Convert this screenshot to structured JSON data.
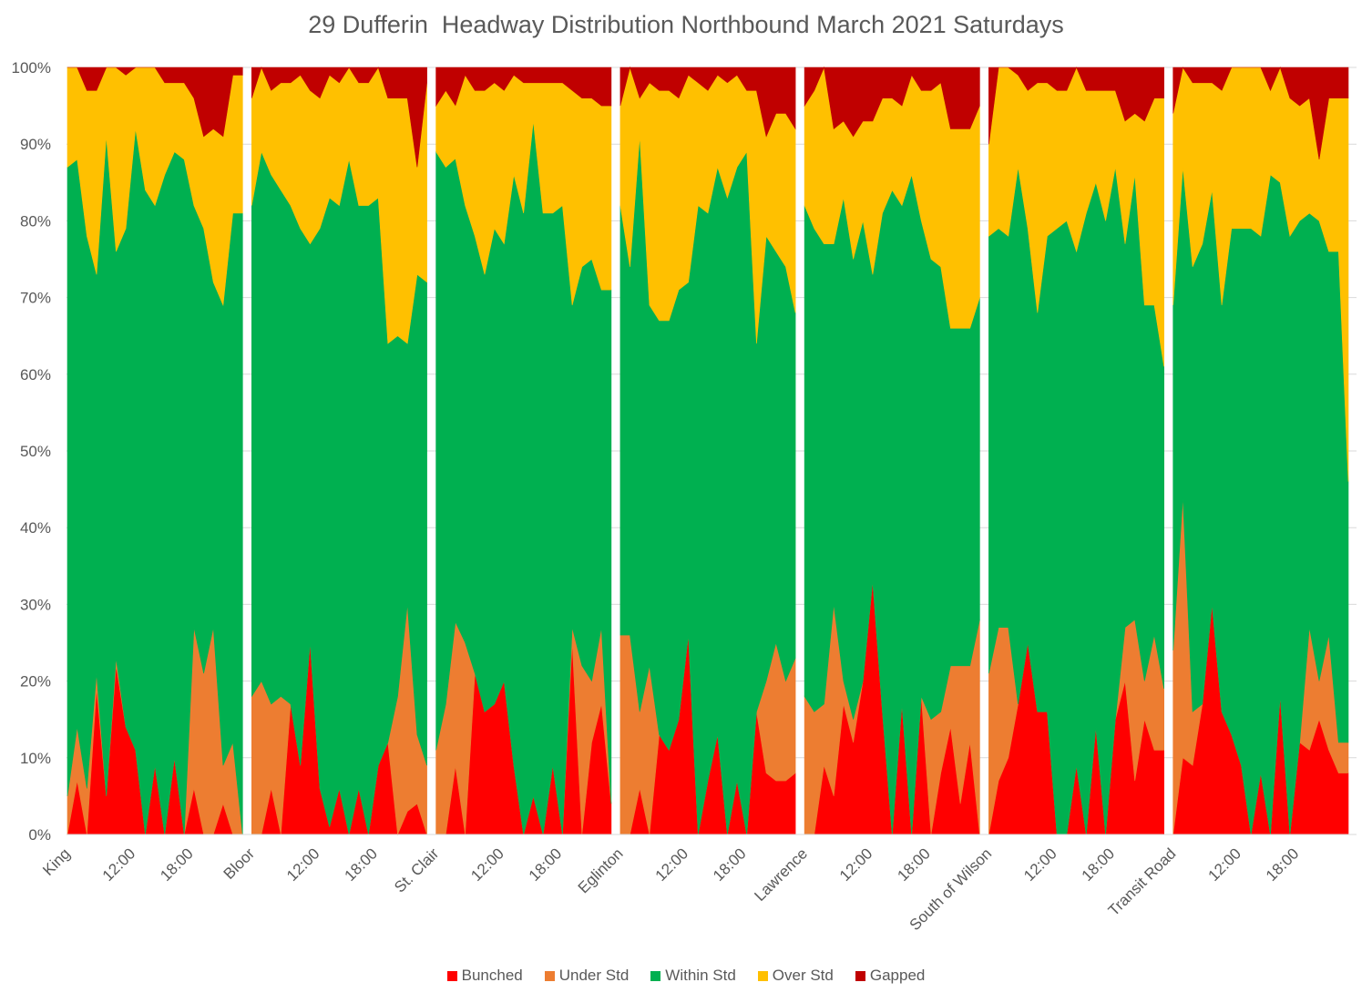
{
  "chart_data": {
    "type": "area",
    "stacked": "percent",
    "title": "29 Dufferin  Headway Distribution Northbound March 2021 Saturdays",
    "xlabel": "",
    "ylabel": "",
    "ylim": [
      0,
      100
    ],
    "y_ticks": [
      "0%",
      "10%",
      "20%",
      "30%",
      "40%",
      "50%",
      "60%",
      "70%",
      "80%",
      "90%",
      "100%"
    ],
    "grid": "horizontal",
    "legend_position": "bottom",
    "series_names": [
      "Bunched",
      "Under Std",
      "Within Std",
      "Over Std",
      "Gapped"
    ],
    "colors": {
      "Bunched": "#ff0000",
      "Under Std": "#ed7d31",
      "Within Std": "#00b050",
      "Over Std": "#ffc000",
      "Gapped": "#c00000"
    },
    "time_tick_labels": [
      "12:00",
      "18:00"
    ],
    "groups": [
      {
        "stop": "King",
        "bunched": [
          0,
          7,
          0,
          19,
          5,
          22,
          14,
          11,
          0,
          9,
          0,
          10,
          0,
          6,
          0,
          0,
          4,
          0,
          0
        ],
        "under": [
          5,
          7,
          6,
          2,
          0,
          1,
          0,
          0,
          0,
          0,
          0,
          0,
          0,
          21,
          21,
          27,
          5,
          12,
          0
        ],
        "within": [
          82,
          74,
          72,
          52,
          86,
          53,
          65,
          81,
          84,
          73,
          86,
          79,
          88,
          55,
          58,
          45,
          60,
          69,
          81
        ],
        "over": [
          13,
          12,
          19,
          24,
          9,
          24,
          20,
          8,
          16,
          18,
          12,
          9,
          10,
          14,
          12,
          20,
          22,
          18,
          18
        ],
        "gapped": [
          0,
          0,
          3,
          3,
          0,
          0,
          1,
          0,
          0,
          0,
          2,
          2,
          2,
          4,
          9,
          8,
          9,
          1,
          1
        ]
      },
      {
        "stop": "Bloor",
        "bunched": [
          0,
          0,
          6,
          0,
          17,
          9,
          25,
          6,
          1,
          6,
          0,
          6,
          0,
          9,
          12,
          0,
          3,
          4,
          0
        ],
        "under": [
          18,
          20,
          11,
          18,
          0,
          0,
          0,
          0,
          0,
          0,
          0,
          0,
          0,
          0,
          0,
          18,
          27,
          9,
          9
        ],
        "within": [
          64,
          69,
          69,
          66,
          65,
          70,
          52,
          73,
          82,
          76,
          88,
          76,
          82,
          74,
          52,
          47,
          34,
          60,
          63
        ],
        "over": [
          14,
          11,
          11,
          14,
          16,
          20,
          20,
          17,
          16,
          16,
          12,
          16,
          16,
          17,
          32,
          31,
          32,
          14,
          26
        ],
        "gapped": [
          4,
          0,
          3,
          2,
          2,
          1,
          3,
          4,
          1,
          2,
          0,
          2,
          2,
          0,
          4,
          4,
          4,
          13,
          2
        ]
      },
      {
        "stop": "St. Clair",
        "bunched": [
          0,
          0,
          9,
          0,
          21,
          16,
          17,
          20,
          9,
          0,
          5,
          0,
          9,
          0,
          25,
          0,
          12,
          17,
          4
        ],
        "under": [
          11,
          17,
          19,
          25,
          0,
          0,
          0,
          0,
          0,
          0,
          0,
          0,
          0,
          0,
          2,
          22,
          8,
          10,
          0
        ],
        "within": [
          78,
          70,
          61,
          57,
          57,
          57,
          62,
          57,
          77,
          81,
          88,
          81,
          72,
          82,
          42,
          52,
          55,
          44,
          67
        ],
        "over": [
          6,
          10,
          7,
          17,
          19,
          24,
          19,
          20,
          13,
          17,
          5,
          17,
          17,
          16,
          28,
          22,
          21,
          24,
          24
        ],
        "gapped": [
          5,
          3,
          5,
          1,
          3,
          3,
          2,
          3,
          1,
          2,
          2,
          2,
          2,
          2,
          3,
          4,
          4,
          5,
          5
        ]
      },
      {
        "stop": "Eglinton",
        "bunched": [
          0,
          0,
          6,
          0,
          13,
          11,
          15,
          26,
          0,
          7,
          13,
          0,
          7,
          0,
          16,
          8,
          7,
          7,
          8
        ],
        "under": [
          26,
          26,
          10,
          22,
          0,
          0,
          0,
          0,
          0,
          0,
          0,
          0,
          0,
          0,
          0,
          12,
          18,
          13,
          15
        ],
        "within": [
          56,
          48,
          75,
          47,
          54,
          56,
          56,
          46,
          82,
          74,
          74,
          83,
          80,
          89,
          48,
          58,
          51,
          54,
          45
        ],
        "over": [
          13,
          26,
          5,
          29,
          30,
          30,
          25,
          27,
          16,
          16,
          12,
          15,
          12,
          8,
          33,
          13,
          18,
          20,
          24
        ],
        "gapped": [
          5,
          0,
          4,
          2,
          3,
          3,
          4,
          1,
          2,
          3,
          1,
          2,
          1,
          3,
          3,
          9,
          6,
          6,
          8
        ]
      },
      {
        "stop": "Lawrence",
        "bunched": [
          0,
          0,
          9,
          5,
          17,
          12,
          20,
          33,
          16,
          0,
          17,
          0,
          18,
          0,
          8,
          14,
          4,
          12,
          0
        ],
        "under": [
          18,
          16,
          8,
          25,
          3,
          3,
          0,
          0,
          0,
          0,
          0,
          0,
          0,
          15,
          8,
          8,
          18,
          10,
          28
        ],
        "within": [
          64,
          63,
          60,
          47,
          63,
          60,
          60,
          40,
          65,
          84,
          65,
          86,
          62,
          60,
          58,
          44,
          44,
          44,
          42
        ],
        "over": [
          13,
          18,
          23,
          15,
          10,
          16,
          13,
          20,
          15,
          12,
          13,
          13,
          17,
          22,
          24,
          26,
          26,
          26,
          25
        ],
        "gapped": [
          5,
          3,
          0,
          8,
          7,
          9,
          7,
          7,
          4,
          4,
          5,
          1,
          3,
          3,
          2,
          8,
          8,
          8,
          5
        ]
      },
      {
        "stop": "South of Wilson",
        "bunched": [
          0,
          7,
          10,
          17,
          25,
          16,
          16,
          0,
          0,
          9,
          0,
          14,
          0,
          15,
          20,
          7,
          15,
          11,
          11
        ],
        "under": [
          21,
          20,
          17,
          0,
          0,
          0,
          0,
          0,
          0,
          0,
          0,
          0,
          0,
          0,
          7,
          21,
          5,
          15,
          8
        ],
        "within": [
          57,
          52,
          51,
          70,
          54,
          52,
          62,
          79,
          80,
          67,
          81,
          71,
          80,
          72,
          50,
          58,
          49,
          43,
          42
        ],
        "over": [
          12,
          21,
          22,
          12,
          18,
          30,
          20,
          18,
          17,
          24,
          16,
          12,
          17,
          10,
          16,
          8,
          24,
          27,
          35
        ],
        "gapped": [
          10,
          0,
          0,
          1,
          3,
          2,
          2,
          3,
          3,
          0,
          3,
          3,
          3,
          3,
          7,
          6,
          7,
          4,
          4
        ]
      },
      {
        "stop": "Transit Road",
        "bunched": [
          0,
          10,
          9,
          17,
          30,
          16,
          13,
          9,
          0,
          8,
          0,
          18,
          0,
          12,
          11,
          15,
          11,
          8,
          8
        ],
        "under": [
          24,
          34,
          7,
          0,
          0,
          0,
          0,
          0,
          0,
          0,
          0,
          0,
          0,
          0,
          16,
          5,
          15,
          4,
          4
        ],
        "within": [
          45,
          43,
          58,
          60,
          54,
          53,
          66,
          70,
          79,
          70,
          86,
          67,
          78,
          68,
          54,
          60,
          50,
          64,
          34
        ],
        "over": [
          25,
          13,
          24,
          21,
          14,
          28,
          21,
          21,
          21,
          22,
          11,
          15,
          18,
          15,
          15,
          8,
          20,
          20,
          50
        ],
        "gapped": [
          6,
          0,
          2,
          2,
          2,
          3,
          0,
          0,
          0,
          0,
          3,
          0,
          4,
          5,
          4,
          12,
          4,
          4,
          4
        ]
      }
    ]
  }
}
